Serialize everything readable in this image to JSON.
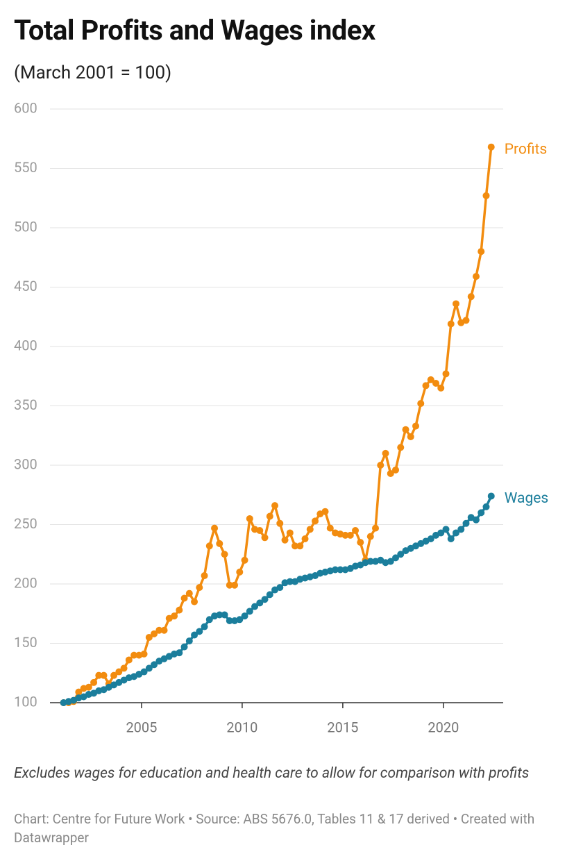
{
  "chart_data": {
    "type": "line",
    "title": "Total Profits and Wages index",
    "subtitle": "(March 2001 = 100)",
    "note": "Excludes wages for education and health care to allow for comparison with profits",
    "source": "Chart: Centre for Future Work • Source: ABS 5676.0, Tables 11 & 17 derived • Created with Datawrapper",
    "x": [
      2001.125,
      2001.375,
      2001.625,
      2001.875,
      2002.125,
      2002.375,
      2002.625,
      2002.875,
      2003.125,
      2003.375,
      2003.625,
      2003.875,
      2004.125,
      2004.375,
      2004.625,
      2004.875,
      2005.125,
      2005.375,
      2005.625,
      2005.875,
      2006.125,
      2006.375,
      2006.625,
      2006.875,
      2007.125,
      2007.375,
      2007.625,
      2007.875,
      2008.125,
      2008.375,
      2008.625,
      2008.875,
      2009.125,
      2009.375,
      2009.625,
      2009.875,
      2010.125,
      2010.375,
      2010.625,
      2010.875,
      2011.125,
      2011.375,
      2011.625,
      2011.875,
      2012.125,
      2012.375,
      2012.625,
      2012.875,
      2013.125,
      2013.375,
      2013.625,
      2013.875,
      2014.125,
      2014.375,
      2014.625,
      2014.875,
      2015.125,
      2015.375,
      2015.625,
      2015.875,
      2016.125,
      2016.375,
      2016.625,
      2016.875,
      2017.125,
      2017.375,
      2017.625,
      2017.875,
      2018.125,
      2018.375,
      2018.625,
      2018.875,
      2019.125,
      2019.375,
      2019.625,
      2019.875,
      2020.125,
      2020.375,
      2020.625,
      2020.875,
      2021.125,
      2021.375,
      2021.625,
      2021.875,
      2022.125,
      2022.375
    ],
    "series": [
      {
        "name": "Profits",
        "color": "#f28c0f",
        "values": [
          100,
          100,
          101,
          109,
          112,
          113,
          117,
          123,
          123,
          116,
          123,
          126,
          129,
          136,
          140,
          140,
          141,
          155,
          158,
          161,
          161,
          171,
          173,
          178,
          188,
          192,
          185,
          197,
          207,
          232,
          247,
          234,
          225,
          199,
          199,
          210,
          220,
          255,
          246,
          245,
          239,
          257,
          266,
          251,
          237,
          243,
          232,
          232,
          238,
          246,
          253,
          259,
          261,
          247,
          243,
          242,
          241,
          241,
          245,
          235,
          220,
          240,
          247,
          300,
          310,
          293,
          296,
          315,
          330,
          324,
          333,
          352,
          367,
          372,
          369,
          365,
          377,
          419,
          436,
          420,
          422,
          442,
          459,
          480,
          527,
          568
        ]
      },
      {
        "name": "Wages",
        "color": "#1b7e9c",
        "values": [
          100,
          101,
          102,
          104,
          105,
          107,
          108,
          110,
          111,
          113,
          115,
          117,
          119,
          121,
          122,
          124,
          126,
          129,
          132,
          135,
          137,
          139,
          141,
          142,
          147,
          152,
          157,
          160,
          164,
          170,
          173,
          174,
          174,
          169,
          169,
          170,
          173,
          177,
          181,
          184,
          187,
          191,
          195,
          197,
          201,
          202,
          202,
          204,
          205,
          206,
          207,
          209,
          210,
          211,
          212,
          212,
          212,
          213,
          215,
          216,
          218,
          219,
          219,
          220,
          218,
          219,
          222,
          225,
          228,
          230,
          232,
          234,
          236,
          238,
          241,
          243,
          246,
          238,
          243,
          246,
          251,
          256,
          254,
          260,
          265,
          274
        ]
      }
    ],
    "xlim": [
      2000.45,
      2022.97
    ],
    "xticks": [
      2005,
      2010,
      2015,
      2020
    ],
    "ylim": [
      100,
      600
    ],
    "yticks": [
      100,
      150,
      200,
      250,
      300,
      350,
      400,
      450,
      500,
      550,
      600
    ],
    "grid": true
  }
}
